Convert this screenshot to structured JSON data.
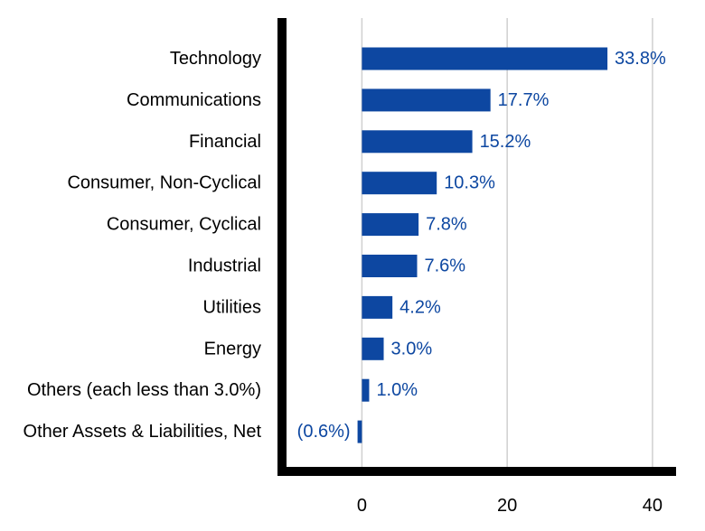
{
  "chart_data": {
    "type": "bar",
    "orientation": "horizontal",
    "categories": [
      "Technology",
      "Communications",
      "Financial",
      "Consumer, Non-Cyclical",
      "Consumer, Cyclical",
      "Industrial",
      "Utilities",
      "Energy",
      "Others (each less than 3.0%)",
      "Other Assets & Liabilities, Net"
    ],
    "values": [
      33.8,
      17.7,
      15.2,
      10.3,
      7.8,
      7.6,
      4.2,
      3.0,
      1.0,
      -0.6
    ],
    "data_labels": [
      "33.8%",
      "17.7%",
      "15.2%",
      "10.3%",
      "7.8%",
      "7.6%",
      "4.2%",
      "3.0%",
      "1.0%",
      "(0.6%)"
    ],
    "xlim": [
      -11,
      43
    ],
    "xticks": [
      0,
      20,
      40
    ],
    "xtick_labels": [
      "0",
      "20",
      "40"
    ],
    "grid": "vertical",
    "title": "",
    "xlabel": "",
    "ylabel": "",
    "colors": {
      "bar": "#0d47a1",
      "data_label": "#0d47a1",
      "axis": "#000000",
      "grid": "#d0d0d0",
      "text": "#000000"
    }
  }
}
